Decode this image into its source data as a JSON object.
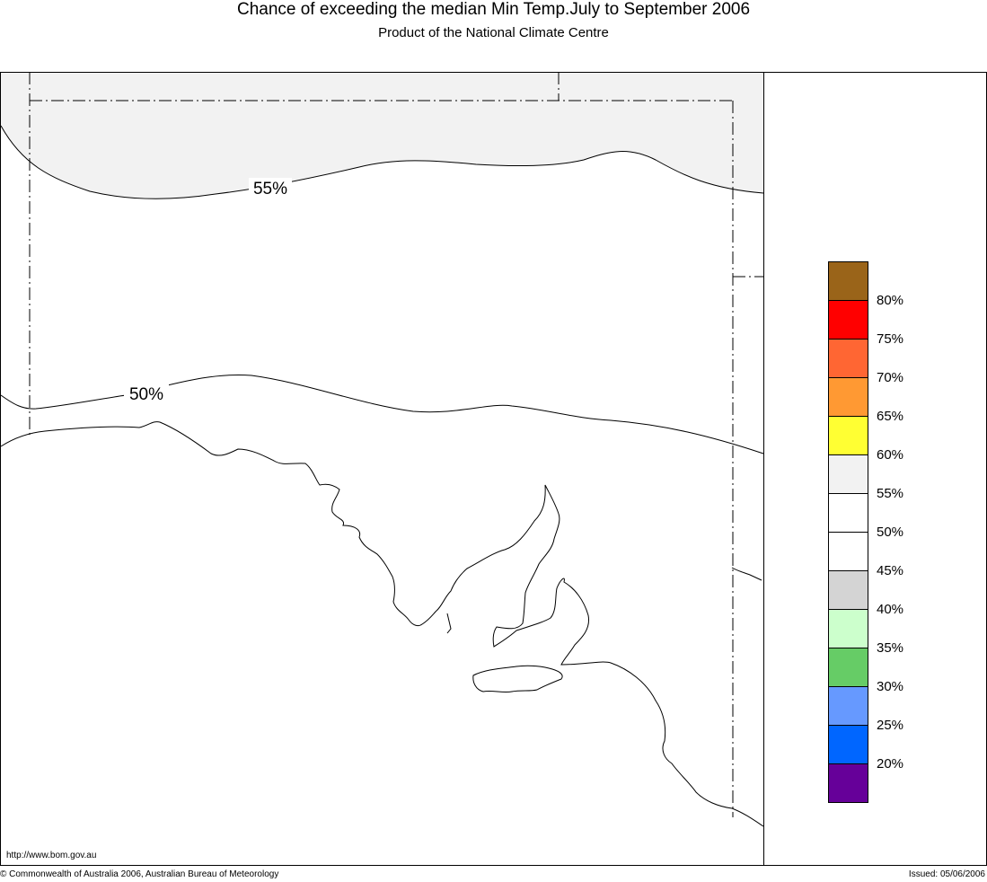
{
  "header": {
    "title": "Chance of exceeding the median Min Temp.July to September 2006",
    "subtitle": "Product of the National Climate Centre"
  },
  "map": {
    "contours": [
      {
        "label": "55%",
        "level": 55,
        "fill_above": "#f2f2f2"
      },
      {
        "label": "50%",
        "level": 50
      }
    ]
  },
  "legend": {
    "bins": [
      {
        "color": "#9a6419"
      },
      {
        "color": "#ff0000",
        "label": "80%"
      },
      {
        "color": "#ff6633",
        "label": "75%"
      },
      {
        "color": "#ff9933",
        "label": "70%"
      },
      {
        "color": "#ffff33",
        "label": "65%"
      },
      {
        "color": "#f2f2f2",
        "label": "60%"
      },
      {
        "color": "#ffffff",
        "label": "55%"
      },
      {
        "color": "#ffffff",
        "label": "50%"
      },
      {
        "color": "#d4d4d4",
        "label": "45%"
      },
      {
        "color": "#ccffcc",
        "label": "40%"
      },
      {
        "color": "#66cc66",
        "label": "35%"
      },
      {
        "color": "#6699ff",
        "label": "30%"
      },
      {
        "color": "#0066ff",
        "label": "25%"
      },
      {
        "color": "#660099",
        "label": "20%"
      }
    ]
  },
  "footer": {
    "url": "http://www.bom.gov.au",
    "copyright": "© Commonwealth of Australia 2006, Australian Bureau of Meteorology",
    "issued": "Issued: 05/06/2006"
  }
}
